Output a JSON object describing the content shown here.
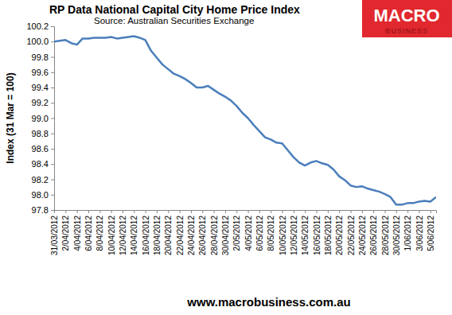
{
  "chart_data": {
    "type": "line",
    "title": "RP Data National Capital City Home Price Index",
    "subtitle": "Source: Australian Securities Exchange",
    "y_label": "Index (31 Mar = 100)",
    "annotations": [
      "MACRO",
      "BUSINESS",
      "www.macrobusiness.com.au"
    ],
    "color": "#4a7ebb",
    "grid": false,
    "ylim": [
      97.8,
      100.2
    ],
    "yticks": [
      97.8,
      {
        "value": 98,
        "label": "98.0"
      },
      98.2,
      98.4,
      98.6,
      98.8,
      {
        "value": 99,
        "label": "99.0"
      },
      99.2,
      99.4,
      99.6,
      99.8,
      {
        "value": 100,
        "label": "100.0"
      },
      100.2
    ],
    "categories": [
      "31/03/2012",
      null,
      "2/04/2012",
      null,
      "4/04/2012",
      null,
      "6/04/2012",
      null,
      "8/04/2012",
      null,
      "10/04/2012",
      null,
      "12/04/2012",
      null,
      "14/04/2012",
      null,
      "16/04/2012",
      null,
      "18/04/2012",
      null,
      "20/04/2012",
      null,
      "22/04/2012",
      null,
      "24/04/2012",
      null,
      "26/04/2012",
      null,
      "28/04/2012",
      null,
      "30/04/2012",
      null,
      "2/05/2012",
      null,
      "4/05/2012",
      null,
      "6/05/2012",
      null,
      "8/05/2012",
      null,
      "10/05/2012",
      null,
      "12/05/2012",
      null,
      "14/05/2012",
      null,
      "16/05/2012",
      null,
      "18/05/2012",
      null,
      "20/05/2012",
      null,
      "22/05/2012",
      null,
      "24/05/2012",
      null,
      "26/05/2012",
      null,
      "28/05/2012",
      null,
      "30/05/2012",
      null,
      "1/06/2012",
      null,
      "3/06/2012",
      null,
      "5/06/2012",
      null
    ],
    "values": [
      100.0,
      100.01,
      100.02,
      99.98,
      99.96,
      100.04,
      100.04,
      100.05,
      100.05,
      100.05,
      100.06,
      100.04,
      100.05,
      100.06,
      100.07,
      100.05,
      100.02,
      99.88,
      99.79,
      99.7,
      99.64,
      99.58,
      99.55,
      99.51,
      99.46,
      99.4,
      99.4,
      99.42,
      99.37,
      99.32,
      99.28,
      99.23,
      99.16,
      99.07,
      99.0,
      98.91,
      98.83,
      98.75,
      98.72,
      98.68,
      98.67,
      98.58,
      98.49,
      98.42,
      98.38,
      98.42,
      98.44,
      98.41,
      98.39,
      98.33,
      98.24,
      98.19,
      98.12,
      98.1,
      98.11,
      98.08,
      98.06,
      98.04,
      98.01,
      97.97,
      97.87,
      97.87,
      97.89,
      97.89,
      97.91,
      97.92,
      97.91,
      97.97
    ]
  }
}
